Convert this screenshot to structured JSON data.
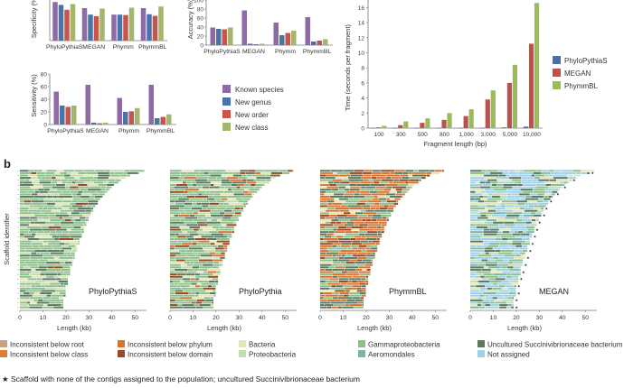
{
  "chart_data": [
    {
      "id": "specificity",
      "type": "bar",
      "ylabel": "Specificity (%)",
      "ylim": [
        0,
        100
      ],
      "categories": [
        "PhyloPythiaS",
        "MEGAN",
        "Phymm",
        "PhymmBL"
      ],
      "series": [
        {
          "name": "Known species",
          "values": [
            95,
            80,
            64,
            80
          ]
        },
        {
          "name": "New genus",
          "values": [
            88,
            64,
            64,
            65
          ]
        },
        {
          "name": "New order",
          "values": [
            76,
            60,
            63,
            61
          ]
        },
        {
          "name": "New class",
          "values": [
            90,
            79,
            81,
            84
          ]
        }
      ]
    },
    {
      "id": "accuracy",
      "type": "bar",
      "ylabel": "Accuracy (%)",
      "ylim": [
        0,
        100
      ],
      "categories": [
        "PhyloPythiaS",
        "MEGAN",
        "Phymm",
        "PhymmBL"
      ],
      "series": [
        {
          "name": "Known species",
          "values": [
            39,
            77,
            50,
            62
          ]
        },
        {
          "name": "New genus",
          "values": [
            36,
            3,
            22,
            8
          ]
        },
        {
          "name": "New order",
          "values": [
            35,
            2,
            27,
            10
          ]
        },
        {
          "name": "New class",
          "values": [
            39,
            3,
            32,
            13
          ]
        }
      ]
    },
    {
      "id": "sensitivity",
      "type": "bar",
      "ylabel": "Sensitivity (%)",
      "ylim": [
        0,
        80
      ],
      "categories": [
        "PhyloPythiaS",
        "MEGAN",
        "Phymm",
        "PhymmBL"
      ],
      "series": [
        {
          "name": "Known species",
          "values": [
            52,
            63,
            42,
            63
          ]
        },
        {
          "name": "New genus",
          "values": [
            30,
            3,
            20,
            10
          ]
        },
        {
          "name": "New order",
          "values": [
            28,
            2,
            21,
            12
          ]
        },
        {
          "name": "New class",
          "values": [
            30,
            3,
            26,
            16
          ]
        }
      ]
    },
    {
      "id": "time",
      "type": "bar",
      "ylabel": "Time (seconds per fragment)",
      "xlabel": "Fragment length (bp)",
      "ylim": [
        0,
        17
      ],
      "yticks": [
        0,
        2,
        4,
        6,
        8,
        10,
        12,
        14,
        16
      ],
      "categories": [
        "100",
        "300",
        "500",
        "800",
        "1,000",
        "3,000",
        "5,000",
        "10,000"
      ],
      "series": [
        {
          "name": "PhyloPythiaS",
          "values": [
            0.05,
            0.05,
            0.05,
            0.05,
            0.05,
            0.05,
            0.1,
            0.2
          ]
        },
        {
          "name": "MEGAN",
          "values": [
            0.1,
            0.4,
            0.7,
            1.1,
            1.6,
            3.8,
            6.0,
            11.2
          ]
        },
        {
          "name": "PhymmBL",
          "values": [
            0.3,
            0.9,
            1.3,
            2.0,
            2.5,
            5.0,
            8.4,
            16.6
          ]
        }
      ]
    },
    {
      "id": "scaffold",
      "type": "bar",
      "panel_label": "b",
      "ylabel": "Scaffold identifier",
      "xlabel": "Length (kb)",
      "xticks": [
        0,
        10,
        20,
        30,
        40,
        50
      ],
      "xlim": [
        0,
        55
      ],
      "panels": [
        "PhyloPythiaS",
        "PhyloPythia",
        "PhymmBL",
        "MEGAN"
      ],
      "scaffold_lengths_kb": [
        54,
        52,
        48,
        46,
        44,
        43,
        41,
        40,
        39,
        38,
        37,
        36,
        35,
        34,
        34,
        33,
        32,
        32,
        31,
        31,
        30,
        30,
        29,
        29,
        28,
        28,
        28,
        27,
        27,
        26,
        26,
        26,
        25,
        25,
        25,
        24,
        24,
        24,
        23,
        23,
        23,
        22,
        22,
        22,
        22,
        21,
        21,
        21,
        21,
        20,
        20,
        20,
        20,
        20,
        19,
        19,
        19,
        19,
        19
      ]
    }
  ],
  "panel_b_label": "b",
  "legend_a": [
    "Known species",
    "New genus",
    "New order",
    "New class"
  ],
  "legend_time": [
    "PhyloPythiaS",
    "MEGAN",
    "PhymmBL"
  ],
  "legend_b": [
    "Inconsistent below root",
    "Inconsistent below phylum",
    "Bacteria",
    "Gammaproteobacteria",
    "Uncultured Succinivibrionaceae bacterium",
    "Inconsistent below class",
    "Inconsistent below domain",
    "Proteobacteria",
    "Aeromondales",
    "Not assigned"
  ],
  "footnote": "Scaffold with none of the contigs assigned to the population; uncultured Succinivibrionaceae bacterium",
  "colors": {
    "known_species": "#8e6aa6",
    "new_genus": "#4a74a8",
    "new_order": "#c8554b",
    "new_class": "#a3b66b",
    "ppys": "#4a6fa5",
    "megan": "#c0504d",
    "phymmbl": "#9bbb59",
    "inc_root": "#c7a27a",
    "inc_phylum": "#d8722e",
    "bacteria": "#e4e6b6",
    "gamma": "#8cbf8a",
    "uncultured": "#5a7a62",
    "inc_class": "#e07b39",
    "inc_domain": "#9a4a22",
    "proteo": "#c4dcb0",
    "aero": "#7bb6a0",
    "not_assigned": "#9fd1ea"
  }
}
